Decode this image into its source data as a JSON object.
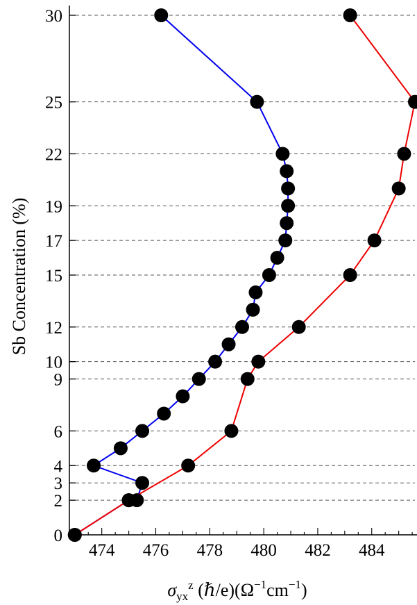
{
  "chart_data": {
    "type": "line",
    "title": "",
    "xlabel": {
      "sigma": "σ",
      "sub": "yx",
      "sup": "z",
      "rest": " (ℏ/e)(Ω",
      "exp1": "−1",
      "mid": "cm",
      "exp2": "−1",
      "close": ")"
    },
    "ylabel": "Sb Concentration (%)",
    "xlim": [
      472.8,
      485.6
    ],
    "ylim": [
      0,
      30
    ],
    "xticks": [
      474,
      476,
      478,
      480,
      482,
      484
    ],
    "yticks": [
      0,
      2,
      3,
      4,
      6,
      9,
      10,
      12,
      15,
      17,
      19,
      22,
      25,
      30
    ],
    "grid": "dashed horizontal lines at y ticks",
    "legend": "none",
    "series": [
      {
        "color": "#0000ee",
        "marker": "black-circle",
        "points": [
          [
            473.0,
            0
          ],
          [
            475.0,
            2
          ],
          [
            475.3,
            2
          ],
          [
            475.5,
            3
          ],
          [
            473.7,
            4
          ],
          [
            474.7,
            5
          ],
          [
            475.5,
            6
          ],
          [
            476.3,
            7
          ],
          [
            477.0,
            8
          ],
          [
            477.6,
            9
          ],
          [
            478.2,
            10
          ],
          [
            478.7,
            11
          ],
          [
            479.2,
            12
          ],
          [
            479.6,
            13
          ],
          [
            479.7,
            14
          ],
          [
            480.2,
            15
          ],
          [
            480.5,
            16
          ],
          [
            480.8,
            17
          ],
          [
            480.85,
            18
          ],
          [
            480.9,
            19
          ],
          [
            480.9,
            20
          ],
          [
            480.85,
            21
          ],
          [
            480.7,
            22
          ],
          [
            479.75,
            25
          ],
          [
            476.2,
            30
          ]
        ]
      },
      {
        "color": "#ee0000",
        "marker": "black-circle",
        "points": [
          [
            473.0,
            0
          ],
          [
            475.0,
            2
          ],
          [
            477.2,
            4
          ],
          [
            478.8,
            6
          ],
          [
            479.4,
            9
          ],
          [
            479.8,
            10
          ],
          [
            481.3,
            12
          ],
          [
            483.2,
            15
          ],
          [
            484.1,
            17
          ],
          [
            485.0,
            20
          ],
          [
            485.2,
            22
          ],
          [
            485.6,
            25
          ],
          [
            483.2,
            30
          ]
        ]
      }
    ]
  }
}
